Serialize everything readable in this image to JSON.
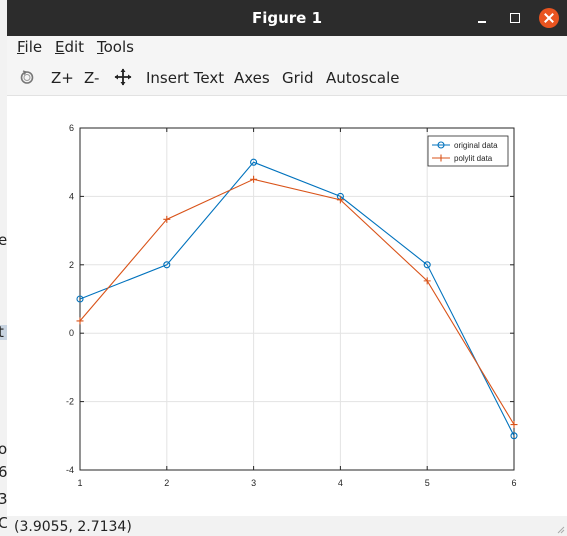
{
  "window": {
    "title": "Figure 1"
  },
  "menubar": {
    "items": [
      {
        "underline": "F",
        "rest": "ile"
      },
      {
        "underline": "E",
        "rest": "dit"
      },
      {
        "underline": "T",
        "rest": "ools"
      }
    ]
  },
  "toolbar": {
    "zoom_in": "Z+",
    "zoom_out": "Z-",
    "insert_text": "Insert Text",
    "axes": "Axes",
    "grid": "Grid",
    "autoscale": "Autoscale"
  },
  "statusbar": {
    "coords": "(3.9055, 2.7134)"
  },
  "background_fragments": [
    "e",
    "t",
    "o",
    "6",
    "3",
    "C"
  ],
  "colors": {
    "series1": "#0072bd",
    "series2": "#d95319",
    "titlebar": "#2c2c2c",
    "close": "#e95420"
  },
  "icons": [
    "rotate-icon",
    "pan-icon",
    "minimize-icon",
    "maximize-icon",
    "close-icon"
  ],
  "chart_data": {
    "type": "line",
    "title": "",
    "xlabel": "",
    "ylabel": "",
    "xlim": [
      1,
      6
    ],
    "ylim": [
      -4,
      6
    ],
    "xticks": [
      "1",
      "2",
      "3",
      "4",
      "5",
      "6"
    ],
    "yticks": [
      "-4",
      "-2",
      "0",
      "2",
      "4",
      "6"
    ],
    "grid": true,
    "legend_position": "top-right",
    "series": [
      {
        "name": "original data",
        "marker": "circle",
        "color": "#0072bd",
        "x": [
          1,
          2,
          3,
          4,
          5,
          6
        ],
        "y": [
          1,
          2,
          5,
          4,
          2,
          -3
        ]
      },
      {
        "name": "polylit data",
        "marker": "plus",
        "color": "#d95319",
        "x": [
          1,
          2,
          3,
          4,
          5,
          6
        ],
        "y": [
          0.36,
          3.33,
          4.5,
          3.9,
          1.53,
          -2.67
        ]
      }
    ]
  }
}
